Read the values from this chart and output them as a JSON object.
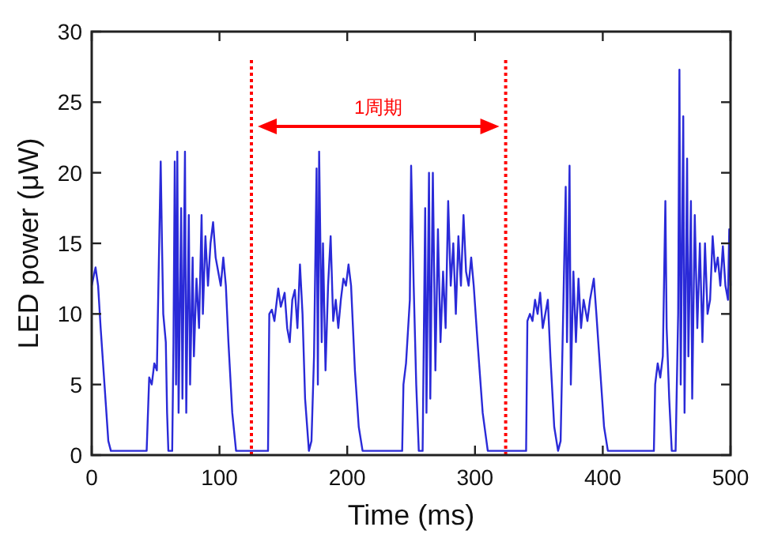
{
  "chart_data": {
    "type": "line",
    "xlabel": "Time (ms)",
    "ylabel": "LED power (μW)",
    "xlim": [
      0,
      500
    ],
    "xticks": [
      0,
      100,
      200,
      300,
      400,
      500
    ],
    "ylim": [
      0,
      30
    ],
    "yticks": [
      0,
      5,
      10,
      15,
      20,
      25,
      30
    ],
    "grid": false,
    "series": [
      {
        "color": "#2a2ad8",
        "x": [
          0,
          3,
          5,
          7,
          10,
          13,
          15,
          20,
          25,
          30,
          35,
          40,
          43,
          45,
          47,
          49,
          51,
          52,
          54,
          55,
          56,
          58,
          59,
          60,
          63,
          64,
          65,
          66,
          67,
          68,
          70,
          71,
          73,
          74,
          76,
          77,
          79,
          80,
          82,
          84,
          86,
          87,
          89,
          91,
          93,
          95,
          97,
          99,
          101,
          103,
          105,
          107,
          110,
          113,
          120,
          130,
          138,
          139,
          141,
          143,
          146,
          148,
          151,
          153,
          155,
          157,
          159,
          161,
          163,
          165,
          167,
          170,
          172,
          174,
          176,
          177,
          178,
          180,
          181,
          183,
          185,
          187,
          189,
          191,
          193,
          195,
          197,
          199,
          201,
          203,
          206,
          209,
          212,
          220,
          230,
          243,
          244,
          246,
          249,
          250,
          252,
          254,
          256,
          259,
          261,
          262,
          264,
          265,
          267,
          269,
          271,
          273,
          275,
          277,
          279,
          281,
          283,
          285,
          287,
          289,
          291,
          293,
          295,
          297,
          299,
          302,
          306,
          310,
          320,
          330,
          340,
          341,
          343,
          345,
          347,
          349,
          351,
          353,
          355,
          357,
          359,
          362,
          365,
          367,
          369,
          371,
          372,
          374,
          375,
          377,
          379,
          381,
          383,
          385,
          388,
          390,
          393,
          395,
          398,
          401,
          404,
          415,
          430,
          440,
          441,
          443,
          445,
          447,
          449,
          450,
          452,
          454,
          457,
          459,
          460,
          461,
          463,
          464,
          466,
          467,
          469,
          470,
          472,
          474,
          476,
          478,
          480,
          482,
          484,
          486,
          488,
          490,
          492,
          494,
          496,
          498,
          499,
          500
        ],
        "values": [
          12,
          13.3,
          12,
          9,
          5,
          1,
          0.3,
          0.3,
          0.3,
          0.3,
          0.3,
          0.3,
          0.3,
          5.5,
          5,
          6.5,
          6,
          11,
          20.8,
          15,
          10,
          8,
          3,
          0.3,
          0.3,
          8,
          20.8,
          5,
          21.5,
          3,
          17.5,
          4,
          21.5,
          3,
          17,
          5,
          14,
          7,
          12.5,
          9,
          17,
          10,
          15.5,
          12,
          15,
          16.5,
          14,
          13,
          12,
          14,
          12,
          8,
          3,
          0.3,
          0.3,
          0.3,
          0.3,
          10,
          10.3,
          9.5,
          11.8,
          10.5,
          11.5,
          9,
          8,
          11,
          11.7,
          9,
          13.5,
          10,
          4,
          0.3,
          1,
          7,
          20.3,
          5,
          21.5,
          8,
          15,
          6,
          12,
          15.5,
          9.5,
          11,
          9,
          11,
          12.5,
          12,
          13.5,
          12,
          6,
          2,
          0.3,
          0.3,
          0.3,
          0.3,
          5,
          6.5,
          11,
          20.5,
          12,
          5,
          0.3,
          0.3,
          17.5,
          3,
          20,
          4,
          20,
          6,
          16,
          8,
          13,
          9,
          18,
          12,
          15,
          10,
          15.5,
          12,
          17,
          13,
          12,
          14,
          12,
          8,
          3,
          0.3,
          0.3,
          0.3,
          0.3,
          9.5,
          10,
          9.5,
          11,
          10,
          11.5,
          9,
          10,
          11,
          7,
          2,
          0.3,
          1,
          10,
          19,
          8,
          20.5,
          5,
          13,
          8,
          12.5,
          9,
          11,
          9.5,
          11,
          12.5,
          10,
          6,
          2,
          0.3,
          0.3,
          0.3,
          0.3,
          5,
          6.5,
          5.5,
          7,
          18,
          9,
          4,
          0.3,
          0.3,
          10,
          27.3,
          5,
          24,
          3,
          21,
          7,
          18,
          4,
          17,
          9,
          15,
          8,
          15,
          10,
          11,
          15.5,
          13,
          14,
          12,
          14.8,
          12,
          11,
          16,
          12
        ]
      }
    ],
    "ref_lines": [
      {
        "axis": "x",
        "value": 125,
        "color": "#ff0000",
        "line_style": "dotted"
      },
      {
        "axis": "x",
        "value": 324,
        "color": "#ff0000",
        "line_style": "dotted"
      }
    ],
    "annotations": [
      "1周期"
    ]
  }
}
